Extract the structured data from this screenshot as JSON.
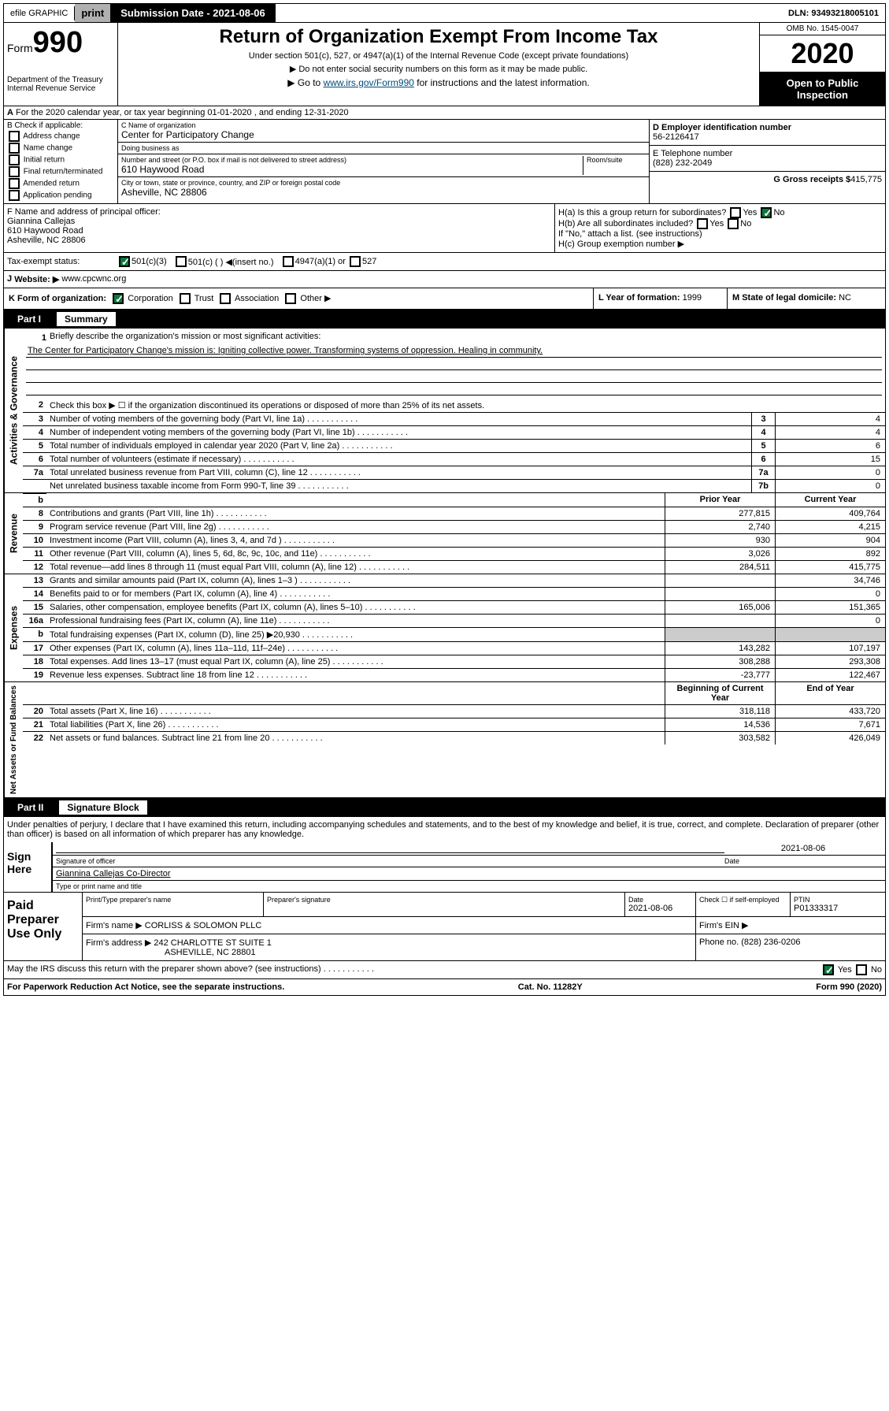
{
  "topbar": {
    "efile": "efile GRAPHIC",
    "print": "print",
    "subdate_label": "Submission Date - 2021-08-06",
    "dln": "DLN: 93493218005101"
  },
  "header": {
    "form": "Form",
    "form_num": "990",
    "dept": "Department of the Treasury\nInternal Revenue Service",
    "title": "Return of Organization Exempt From Income Tax",
    "subtitle": "Under section 501(c), 527, or 4947(a)(1) of the Internal Revenue Code (except private foundations)",
    "note1": "▶ Do not enter social security numbers on this form as it may be made public.",
    "note2_pre": "▶ Go to ",
    "note2_link": "www.irs.gov/Form990",
    "note2_post": " for instructions and the latest information.",
    "omb": "OMB No. 1545-0047",
    "year": "2020",
    "open": "Open to Public Inspection"
  },
  "lineA": "For the 2020 calendar year, or tax year beginning 01-01-2020    , and ending 12-31-2020",
  "checkB": {
    "label": "B Check if applicable:",
    "items": [
      "Address change",
      "Name change",
      "Initial return",
      "Final return/terminated",
      "Amended return",
      "Application pending"
    ]
  },
  "orgC": {
    "name_label": "C Name of organization",
    "name": "Center for Participatory Change",
    "dba_label": "Doing business as",
    "dba": "",
    "addr_label": "Number and street (or P.O. box if mail is not delivered to street address)",
    "room_label": "Room/suite",
    "addr": "610 Haywood Road",
    "city_label": "City or town, state or province, country, and ZIP or foreign postal code",
    "city": "Asheville, NC 28806"
  },
  "right": {
    "ein_label": "D Employer identification number",
    "ein": "56-2126417",
    "phone_label": "E Telephone number",
    "phone": "(828) 232-2049",
    "gross_label": "G Gross receipts $",
    "gross": "415,775"
  },
  "officerF": {
    "label": "F  Name and address of principal officer:",
    "name": "Giannina Callejas",
    "addr": "610 Haywood Road",
    "city": "Asheville, NC  28806"
  },
  "groupH": {
    "a": "H(a)  Is this a group return for subordinates?",
    "b": "H(b)  Are all subordinates included?",
    "note": "If \"No,\" attach a list. (see instructions)",
    "c": "H(c)  Group exemption number ▶"
  },
  "taxI": {
    "label": "Tax-exempt status:",
    "opts": [
      "501(c)(3)",
      "501(c) (  ) ◀(insert no.)",
      "4947(a)(1) or",
      "527"
    ]
  },
  "websiteJ": {
    "label": "J",
    "text": "Website: ▶",
    "val": "www.cpcwnc.org"
  },
  "formK": {
    "label": "K Form of organization:",
    "opts": [
      "Corporation",
      "Trust",
      "Association",
      "Other ▶"
    ]
  },
  "yearL": {
    "label": "L Year of formation:",
    "val": "1999"
  },
  "stateM": {
    "label": "M State of legal domicile:",
    "val": "NC"
  },
  "partI": {
    "num": "Part I",
    "title": "Summary",
    "q1_label": "1",
    "q1_text": "Briefly describe the organization's mission or most significant activities:",
    "q1_ans": "The Center for Participatory Change's mission is: Igniting collective power. Transforming systems of oppression. Healing in community.",
    "q2": "Check this box ▶ ☐  if the organization discontinued its operations or disposed of more than 25% of its net assets.",
    "rows_gov": [
      {
        "n": "3",
        "t": "Number of voting members of the governing body (Part VI, line 1a)",
        "b": "3",
        "v": "4"
      },
      {
        "n": "4",
        "t": "Number of independent voting members of the governing body (Part VI, line 1b)",
        "b": "4",
        "v": "4"
      },
      {
        "n": "5",
        "t": "Total number of individuals employed in calendar year 2020 (Part V, line 2a)",
        "b": "5",
        "v": "6"
      },
      {
        "n": "6",
        "t": "Total number of volunteers (estimate if necessary)",
        "b": "6",
        "v": "15"
      },
      {
        "n": "7a",
        "t": "Total unrelated business revenue from Part VIII, column (C), line 12",
        "b": "7a",
        "v": "0"
      },
      {
        "n": "",
        "t": "Net unrelated business taxable income from Form 990-T, line 39",
        "b": "7b",
        "v": "0"
      }
    ],
    "col_prior": "Prior Year",
    "col_current": "Current Year",
    "rows_rev": [
      {
        "n": "8",
        "t": "Contributions and grants (Part VIII, line 1h)",
        "p": "277,815",
        "c": "409,764"
      },
      {
        "n": "9",
        "t": "Program service revenue (Part VIII, line 2g)",
        "p": "2,740",
        "c": "4,215"
      },
      {
        "n": "10",
        "t": "Investment income (Part VIII, column (A), lines 3, 4, and 7d )",
        "p": "930",
        "c": "904"
      },
      {
        "n": "11",
        "t": "Other revenue (Part VIII, column (A), lines 5, 6d, 8c, 9c, 10c, and 11e)",
        "p": "3,026",
        "c": "892"
      },
      {
        "n": "12",
        "t": "Total revenue—add lines 8 through 11 (must equal Part VIII, column (A), line 12)",
        "p": "284,511",
        "c": "415,775"
      }
    ],
    "rows_exp": [
      {
        "n": "13",
        "t": "Grants and similar amounts paid (Part IX, column (A), lines 1–3 )",
        "p": "",
        "c": "34,746"
      },
      {
        "n": "14",
        "t": "Benefits paid to or for members (Part IX, column (A), line 4)",
        "p": "",
        "c": "0"
      },
      {
        "n": "15",
        "t": "Salaries, other compensation, employee benefits (Part IX, column (A), lines 5–10)",
        "p": "165,006",
        "c": "151,365"
      },
      {
        "n": "16a",
        "t": "Professional fundraising fees (Part IX, column (A), line 11e)",
        "p": "",
        "c": "0"
      },
      {
        "n": "b",
        "t": "Total fundraising expenses (Part IX, column (D), line 25) ▶20,930",
        "p": "",
        "c": "",
        "gray": true
      },
      {
        "n": "17",
        "t": "Other expenses (Part IX, column (A), lines 11a–11d, 11f–24e)",
        "p": "143,282",
        "c": "107,197"
      },
      {
        "n": "18",
        "t": "Total expenses. Add lines 13–17 (must equal Part IX, column (A), line 25)",
        "p": "308,288",
        "c": "293,308"
      },
      {
        "n": "19",
        "t": "Revenue less expenses. Subtract line 18 from line 12",
        "p": "-23,777",
        "c": "122,467"
      }
    ],
    "col_begin": "Beginning of Current Year",
    "col_end": "End of Year",
    "rows_net": [
      {
        "n": "20",
        "t": "Total assets (Part X, line 16)",
        "p": "318,118",
        "c": "433,720"
      },
      {
        "n": "21",
        "t": "Total liabilities (Part X, line 26)",
        "p": "14,536",
        "c": "7,671"
      },
      {
        "n": "22",
        "t": "Net assets or fund balances. Subtract line 21 from line 20",
        "p": "303,582",
        "c": "426,049"
      }
    ]
  },
  "partII": {
    "num": "Part II",
    "title": "Signature Block",
    "decl": "Under penalties of perjury, I declare that I have examined this return, including accompanying schedules and statements, and to the best of my knowledge and belief, it is true, correct, and complete. Declaration of preparer (other than officer) is based on all information of which preparer has any knowledge.",
    "sign_here": "Sign Here",
    "sig_officer": "Signature of officer",
    "sig_date": "2021-08-06",
    "date_label": "Date",
    "officer_name": "Giannina Callejas Co-Director",
    "type_name": "Type or print name and title",
    "paid_label": "Paid Preparer Use Only",
    "prep_name_label": "Print/Type preparer's name",
    "prep_sig_label": "Preparer's signature",
    "prep_date": "2021-08-06",
    "check_self": "Check ☐ if self-employed",
    "ptin_label": "PTIN",
    "ptin": "P01333317",
    "firm_name_label": "Firm's name     ▶",
    "firm_name": "CORLISS & SOLOMON PLLC",
    "firm_ein_label": "Firm's EIN ▶",
    "firm_addr_label": "Firm's address ▶",
    "firm_addr": "242 CHARLOTTE ST SUITE 1",
    "firm_city": "ASHEVILLE, NC  28801",
    "firm_phone_label": "Phone no.",
    "firm_phone": "(828) 236-0206",
    "discuss": "May the IRS discuss this return with the preparer shown above? (see instructions)",
    "yes": "Yes",
    "no": "No"
  },
  "footer": {
    "paperwork": "For Paperwork Reduction Act Notice, see the separate instructions.",
    "cat": "Cat. No. 11282Y",
    "form": "Form 990 (2020)"
  },
  "vlabels": {
    "gov": "Activities & Governance",
    "rev": "Revenue",
    "exp": "Expenses",
    "net": "Net Assets or Fund Balances"
  }
}
